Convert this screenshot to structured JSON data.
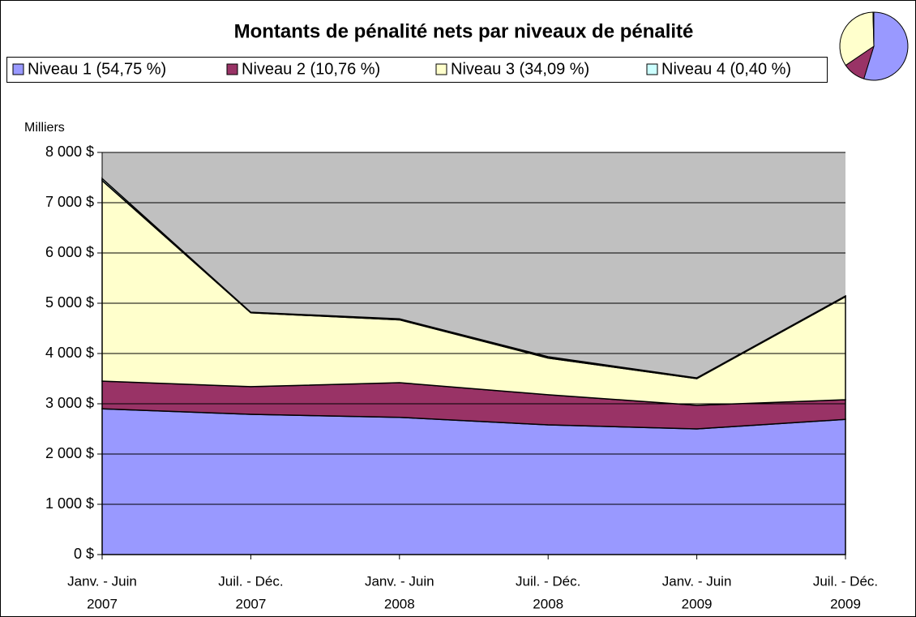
{
  "chart_data": [
    {
      "type": "stacked_area",
      "title": "Montants de pénalité nets par niveaux de pénalité",
      "ylabel": "Milliers",
      "categories": [
        [
          "Janv. - Juin",
          "2007"
        ],
        [
          "Juil. - Déc.",
          "2007"
        ],
        [
          "Janv. - Juin",
          "2008"
        ],
        [
          "Juil. - Déc.",
          "2008"
        ],
        [
          "Janv. - Juin",
          "2009"
        ],
        [
          "Juil. - Déc.",
          "2009"
        ]
      ],
      "series": [
        {
          "name": "Niveau 1 (54,75 %)",
          "color": "#9999ff",
          "values": [
            2900,
            2790,
            2730,
            2580,
            2500,
            2690
          ]
        },
        {
          "name": "Niveau 2 (10,76 %)",
          "color": "#993366",
          "values": [
            550,
            550,
            690,
            600,
            470,
            390
          ]
        },
        {
          "name": "Niveau 3 (34,09 %)",
          "color": "#ffffcc",
          "values": [
            3990,
            1470,
            1250,
            730,
            530,
            2050
          ]
        },
        {
          "name": "Niveau 4 (0,40 %)",
          "color": "#ccffff",
          "values": [
            40,
            10,
            20,
            25,
            15,
            15
          ]
        }
      ],
      "ylim": [
        0,
        8000
      ],
      "yticks": [
        {
          "value": 0,
          "label": "0 $"
        },
        {
          "value": 1000,
          "label": "1 000 $"
        },
        {
          "value": 2000,
          "label": "2 000 $"
        },
        {
          "value": 3000,
          "label": "3 000 $"
        },
        {
          "value": 4000,
          "label": "4 000 $"
        },
        {
          "value": 5000,
          "label": "5 000 $"
        },
        {
          "value": 6000,
          "label": "6 000 $"
        },
        {
          "value": 7000,
          "label": "7 000 $"
        },
        {
          "value": 8000,
          "label": "8 000 $"
        }
      ],
      "grid": true,
      "plot_background": "#c0c0c0",
      "legend": "top"
    },
    {
      "type": "pie",
      "values": [
        54.75,
        10.76,
        34.09,
        0.4
      ],
      "colors": [
        "#9999ff",
        "#993366",
        "#ffffcc",
        "#ccffff"
      ]
    }
  ]
}
